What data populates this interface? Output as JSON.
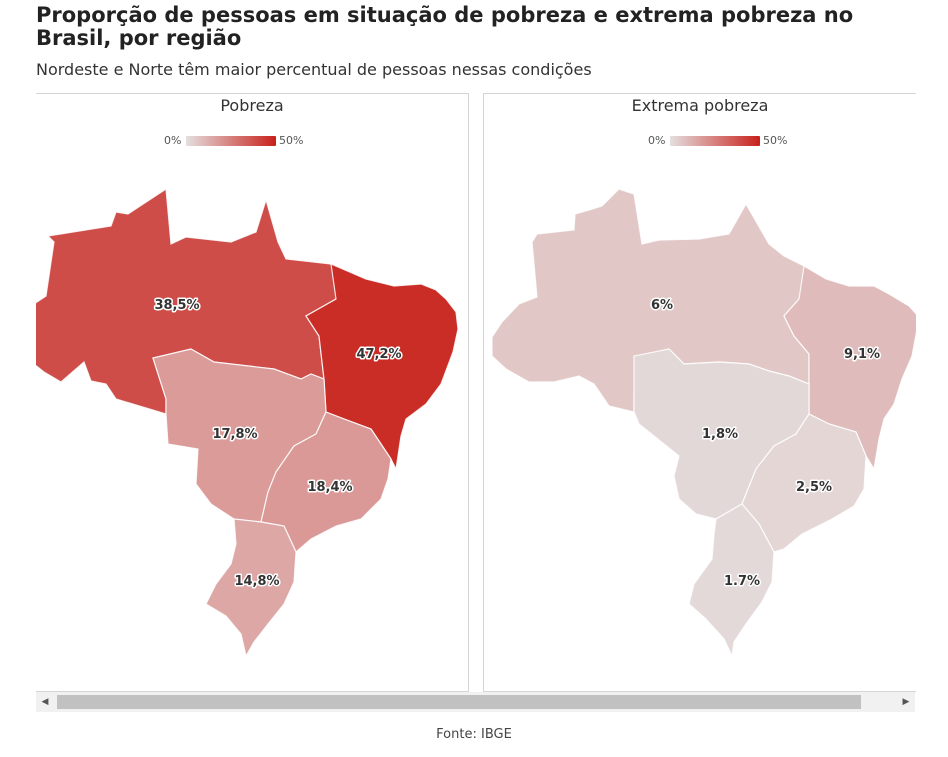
{
  "title": "Proporção de pessoas em situação de pobreza e extrema pobreza no Brasil, por região",
  "subtitle": "Nordeste e Norte têm maior percentual de pessoas nessas condições",
  "colors": {
    "scale_min": "#e4dfdf",
    "scale_max": "#c8211b"
  },
  "maps": [
    {
      "title": "Pobreza",
      "legend_min": "0%",
      "legend_max": "50%",
      "regions": [
        {
          "name": "Norte",
          "value": 38.5,
          "label": "38,5%"
        },
        {
          "name": "Nordeste",
          "value": 47.2,
          "label": "47,2%"
        },
        {
          "name": "Centro-Oeste",
          "value": 17.8,
          "label": "17,8%"
        },
        {
          "name": "Sudeste",
          "value": 18.4,
          "label": "18,4%"
        },
        {
          "name": "Sul",
          "value": 14.8,
          "label": "14,8%"
        }
      ]
    },
    {
      "title": "Extrema pobreza",
      "legend_min": "0%",
      "legend_max": "50%",
      "regions": [
        {
          "name": "Norte",
          "value": 6,
          "label": "6%"
        },
        {
          "name": "Nordeste",
          "value": 9.1,
          "label": "9,1%"
        },
        {
          "name": "Centro-Oeste",
          "value": 1.8,
          "label": "1,8%"
        },
        {
          "name": "Sudeste",
          "value": 2.5,
          "label": "2,5%"
        },
        {
          "name": "Sul",
          "value": 1.7,
          "label": "1.7%"
        }
      ]
    }
  ],
  "scrollbar": {
    "left_arrow": "◀",
    "right_arrow": "▶"
  },
  "source": "Fonte: IBGE"
}
